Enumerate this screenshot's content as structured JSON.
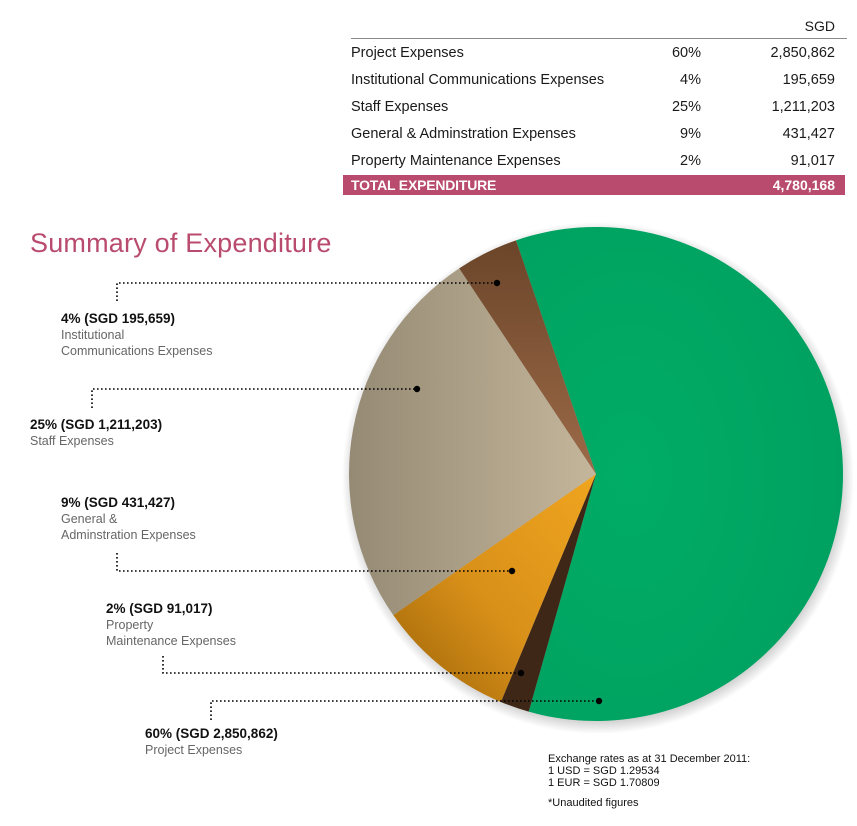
{
  "table": {
    "currency_header": "SGD",
    "rows": [
      {
        "label": "Project Expenses",
        "percent": "60%",
        "amount": "2,850,862"
      },
      {
        "label": "Institutional Communications Expenses",
        "percent": "4%",
        "amount": "195,659"
      },
      {
        "label": "Staff Expenses",
        "percent": "25%",
        "amount": "1,211,203"
      },
      {
        "label": "General & Adminstration Expenses",
        "percent": "9%",
        "amount": "431,427"
      },
      {
        "label": "Property Maintenance Expenses",
        "percent": "2%",
        "amount": "91,017"
      }
    ],
    "total": {
      "label": "TOTAL EXPENDITURE",
      "amount": "4,780,168"
    }
  },
  "colors": {
    "accent": "#b94b6e",
    "project": "#00a862",
    "institutional": "#7e5537",
    "staff": "#b9ab92",
    "general": "#e0961c",
    "property": "#3e2716"
  },
  "chart_data": {
    "type": "pie",
    "title": "Summary of Expenditure",
    "unit": "SGD",
    "slices": [
      {
        "name": "Project Expenses",
        "value": 2850862,
        "percent": 60,
        "label_value": "60% (SGD 2,850,862)",
        "label_desc": [
          "Project Expenses"
        ],
        "color": "#00a862"
      },
      {
        "name": "Property Maintenance Expenses",
        "value": 91017,
        "percent": 2,
        "label_value": "2% (SGD 91,017)",
        "label_desc": [
          "Property",
          "Maintenance Expenses"
        ],
        "color": "#3e2716"
      },
      {
        "name": "General & Adminstration Expenses",
        "value": 431427,
        "percent": 9,
        "label_value": "9% (SGD 431,427)",
        "label_desc": [
          "General &",
          "Adminstration Expenses"
        ],
        "color": "#e0961c"
      },
      {
        "name": "Staff Expenses",
        "value": 1211203,
        "percent": 25,
        "label_value": "25% (SGD 1,211,203)",
        "label_desc": [
          "Staff Expenses"
        ],
        "color": "#b9ab92"
      },
      {
        "name": "Institutional Communications Expenses",
        "value": 195659,
        "percent": 4,
        "label_value": "4% (SGD 195,659)",
        "label_desc": [
          "Institutional",
          "Communications Expenses"
        ],
        "color": "#7e5537"
      }
    ],
    "start_angle_deg": -108.9,
    "direction": "clockwise"
  },
  "notes": {
    "exchange_title": "Exchange rates as at 31 December 2011:",
    "usd": "1 USD = SGD 1.29534",
    "eur": "1 EUR = SGD 1.70809",
    "footnote": "*Unaudited figures"
  }
}
